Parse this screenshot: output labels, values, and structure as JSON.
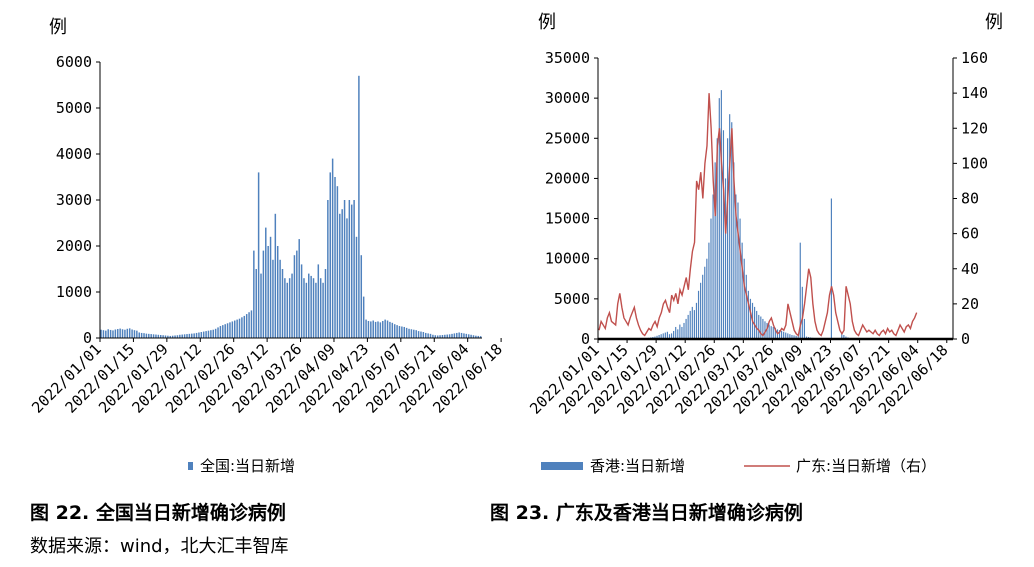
{
  "captions": {
    "left": "图 22.  全国当日新增确诊病例",
    "right": "图 23.  广东及香港当日新增确诊病例",
    "source": "数据来源：wind，北大汇丰智库"
  },
  "colors": {
    "bar": "#4f81bd",
    "line": "#c0504d",
    "axis": "#000000"
  },
  "chart_data": [
    {
      "type": "bar",
      "unit_label": "例",
      "ylim": [
        0,
        6000
      ],
      "y_ticks": [
        "0",
        "1000",
        "2000",
        "3000",
        "4000",
        "5000",
        "6000"
      ],
      "x_ticks": [
        "2022/01/01",
        "2022/01/15",
        "2022/01/29",
        "2022/02/12",
        "2022/02/26",
        "2022/03/12",
        "2022/03/26",
        "2022/04/09",
        "2022/04/23",
        "2022/05/07",
        "2022/05/21",
        "2022/06/04",
        "2022/06/18"
      ],
      "x_start": "2022/01/01",
      "x_end": "2022/06/26",
      "legend": [
        "全国:当日新增"
      ],
      "series": [
        {
          "name": "全国:当日新增",
          "values": [
            180,
            170,
            160,
            190,
            175,
            165,
            185,
            195,
            205,
            190,
            180,
            200,
            210,
            185,
            170,
            160,
            120,
            110,
            105,
            95,
            90,
            85,
            80,
            75,
            70,
            65,
            60,
            55,
            50,
            45,
            50,
            55,
            60,
            70,
            75,
            80,
            85,
            90,
            95,
            100,
            110,
            120,
            130,
            140,
            150,
            160,
            170,
            180,
            200,
            230,
            260,
            280,
            300,
            320,
            340,
            360,
            380,
            400,
            420,
            450,
            480,
            520,
            560,
            600,
            1900,
            1500,
            3600,
            1400,
            1900,
            2400,
            2000,
            2200,
            1700,
            2700,
            2000,
            1700,
            1500,
            1300,
            1200,
            1300,
            1400,
            1800,
            1900,
            2150,
            1600,
            1300,
            1200,
            1400,
            1350,
            1300,
            1200,
            1600,
            1300,
            1200,
            1500,
            3000,
            3600,
            3900,
            3500,
            3300,
            2700,
            2800,
            3000,
            2600,
            3000,
            2900,
            3000,
            2200,
            5700,
            1800,
            900,
            400,
            370,
            360,
            380,
            350,
            360,
            340,
            370,
            400,
            380,
            350,
            330,
            300,
            280,
            260,
            250,
            240,
            220,
            200,
            190,
            180,
            170,
            150,
            140,
            130,
            110,
            100,
            90,
            70,
            60,
            55,
            60,
            65,
            70,
            75,
            80,
            90,
            100,
            110,
            120,
            110,
            100,
            90,
            80,
            70,
            60,
            50,
            45,
            40
          ]
        }
      ]
    },
    {
      "type": "bar+line",
      "unit_label_left": "例",
      "unit_label_right": "例",
      "ylim_left": [
        0,
        35000
      ],
      "ylim_right": [
        0,
        160
      ],
      "y_ticks_left": [
        "0",
        "5000",
        "10000",
        "15000",
        "20000",
        "25000",
        "30000",
        "35000"
      ],
      "y_ticks_right": [
        "0",
        "20",
        "40",
        "60",
        "80",
        "100",
        "120",
        "140",
        "160"
      ],
      "x_ticks": [
        "2022/01/01",
        "2022/01/15",
        "2022/01/29",
        "2022/02/12",
        "2022/02/26",
        "2022/03/12",
        "2022/03/26",
        "2022/04/09",
        "2022/04/23",
        "2022/05/07",
        "2022/05/21",
        "2022/06/04",
        "2022/06/18"
      ],
      "x_start": "2022/01/01",
      "x_end": "2022/06/26",
      "legend": [
        "香港:当日新增",
        "广东:当日新增（右）"
      ],
      "series": [
        {
          "name": "香港:当日新增",
          "axis": "left",
          "values": [
            50,
            30,
            40,
            20,
            30,
            40,
            30,
            40,
            50,
            60,
            40,
            30,
            20,
            40,
            30,
            20,
            30,
            40,
            50,
            60,
            70,
            80,
            100,
            120,
            150,
            200,
            250,
            300,
            400,
            500,
            600,
            700,
            800,
            900,
            600,
            700,
            1000,
            1500,
            1200,
            1800,
            1500,
            2000,
            2500,
            3000,
            3500,
            4000,
            3600,
            4500,
            6000,
            7000,
            8000,
            9000,
            10000,
            12000,
            15000,
            18000,
            22000,
            25000,
            30000,
            31000,
            26000,
            20000,
            25000,
            28000,
            27000,
            22000,
            18000,
            17000,
            15000,
            12000,
            10000,
            8000,
            6000,
            5000,
            4500,
            4000,
            3500,
            3000,
            2800,
            2500,
            2200,
            2000,
            1800,
            1600,
            1500,
            1400,
            1200,
            1100,
            1000,
            900,
            800,
            700,
            600,
            500,
            450,
            400,
            350,
            12000,
            6500,
            2500,
            300,
            250,
            200,
            150,
            100,
            80,
            60,
            50,
            40,
            30,
            25,
            20,
            17500,
            15,
            10,
            10,
            8,
            700,
            500,
            300,
            200,
            100,
            50,
            40,
            30,
            25,
            20,
            15,
            10,
            10,
            8,
            8,
            6,
            5,
            5,
            5,
            4,
            4,
            3,
            3,
            3,
            3,
            2,
            2,
            2,
            2,
            2,
            2,
            2,
            2,
            2,
            2,
            2,
            2,
            2,
            2,
            2,
            2,
            2,
            2,
            2,
            2,
            2,
            2,
            2,
            2,
            2,
            2,
            2,
            2,
            2
          ]
        },
        {
          "name": "广东:当日新增（右）",
          "axis": "right",
          "values": [
            5,
            10,
            8,
            6,
            12,
            15,
            10,
            9,
            8,
            20,
            26,
            18,
            12,
            10,
            8,
            12,
            15,
            18,
            12,
            8,
            5,
            3,
            2,
            4,
            6,
            5,
            8,
            10,
            7,
            12,
            15,
            20,
            22,
            18,
            15,
            25,
            22,
            26,
            20,
            28,
            25,
            30,
            35,
            28,
            40,
            50,
            55,
            90,
            85,
            95,
            80,
            100,
            110,
            140,
            120,
            90,
            70,
            110,
            120,
            100,
            85,
            60,
            80,
            100,
            120,
            90,
            70,
            60,
            50,
            40,
            30,
            25,
            20,
            15,
            10,
            8,
            6,
            5,
            3,
            2,
            4,
            6,
            10,
            12,
            8,
            5,
            3,
            4,
            6,
            5,
            8,
            20,
            15,
            10,
            5,
            3,
            2,
            8,
            12,
            20,
            30,
            40,
            35,
            20,
            10,
            5,
            3,
            2,
            5,
            10,
            15,
            25,
            30,
            25,
            15,
            10,
            5,
            3,
            5,
            30,
            25,
            20,
            10,
            5,
            3,
            2,
            5,
            8,
            6,
            4,
            5,
            4,
            3,
            5,
            3,
            2,
            4,
            5,
            3,
            6,
            4,
            5,
            3,
            2,
            5,
            8,
            6,
            4,
            7,
            8,
            6,
            10,
            12,
            15
          ]
        }
      ]
    }
  ]
}
